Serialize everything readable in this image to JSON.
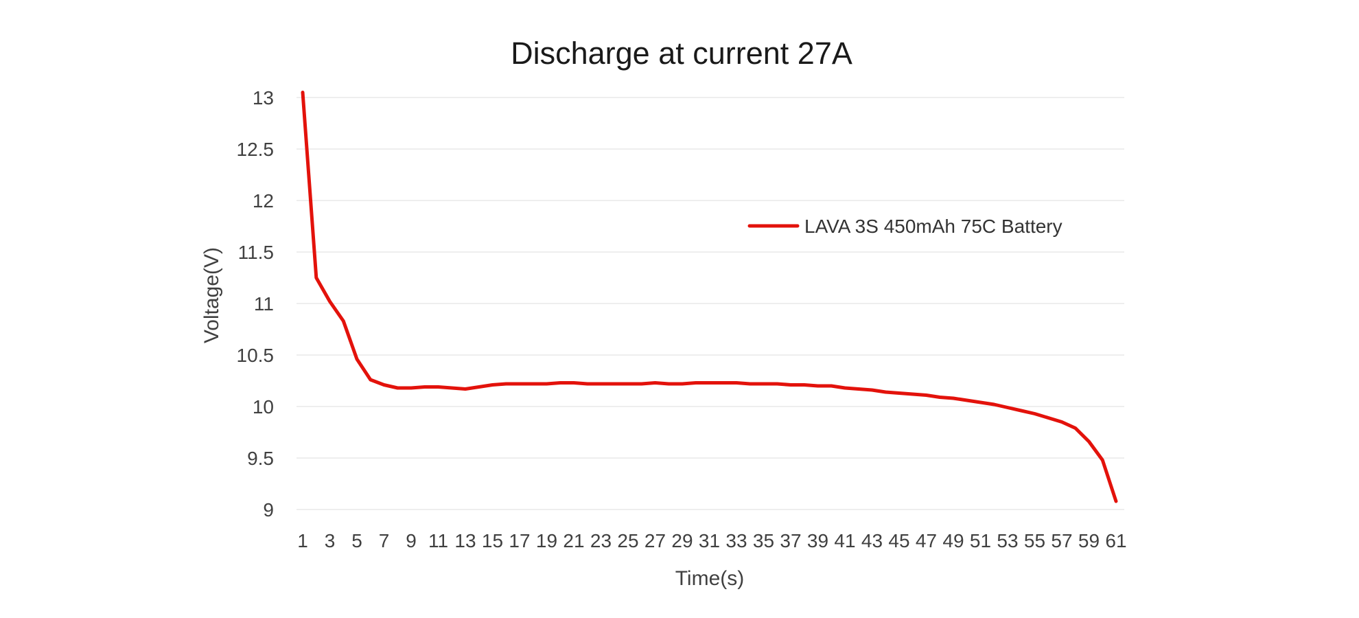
{
  "chart_data": {
    "type": "line",
    "title": "Discharge at current 27A",
    "xlabel": "Time(s)",
    "ylabel": "Voltage(V)",
    "x_tick_labels": [
      "1",
      "3",
      "5",
      "7",
      "9",
      "11",
      "13",
      "15",
      "17",
      "19",
      "21",
      "23",
      "25",
      "27",
      "29",
      "31",
      "33",
      "35",
      "37",
      "39",
      "41",
      "43",
      "45",
      "47",
      "49",
      "51",
      "53",
      "55",
      "57",
      "59",
      "61"
    ],
    "y_tick_labels": [
      "13",
      "12.5",
      "12",
      "11.5",
      "11",
      "10.5",
      "10",
      "9.5",
      "9"
    ],
    "ylim": [
      9,
      13
    ],
    "xlim": [
      1,
      61
    ],
    "grid": "horizontal",
    "legend_position": "right",
    "series": [
      {
        "name": "LAVA 3S 450mAh 75C Battery",
        "color": "#e3120b",
        "x": [
          1,
          2,
          3,
          4,
          5,
          6,
          7,
          8,
          9,
          10,
          11,
          12,
          13,
          14,
          15,
          16,
          17,
          18,
          19,
          20,
          21,
          22,
          23,
          24,
          25,
          26,
          27,
          28,
          29,
          30,
          31,
          32,
          33,
          34,
          35,
          36,
          37,
          38,
          39,
          40,
          41,
          42,
          43,
          44,
          45,
          46,
          47,
          48,
          49,
          50,
          51,
          52,
          53,
          54,
          55,
          56,
          57,
          58,
          59,
          60,
          61
        ],
        "values": [
          13.05,
          11.25,
          11.02,
          10.83,
          10.46,
          10.26,
          10.21,
          10.18,
          10.18,
          10.19,
          10.19,
          10.18,
          10.17,
          10.19,
          10.21,
          10.22,
          10.22,
          10.22,
          10.22,
          10.23,
          10.23,
          10.22,
          10.22,
          10.22,
          10.22,
          10.22,
          10.23,
          10.22,
          10.22,
          10.23,
          10.23,
          10.23,
          10.23,
          10.22,
          10.22,
          10.22,
          10.21,
          10.21,
          10.2,
          10.2,
          10.18,
          10.17,
          10.16,
          10.14,
          10.13,
          10.12,
          10.11,
          10.09,
          10.08,
          10.06,
          10.04,
          10.02,
          9.99,
          9.96,
          9.93,
          9.89,
          9.85,
          9.79,
          9.66,
          9.48,
          9.08
        ]
      }
    ]
  }
}
